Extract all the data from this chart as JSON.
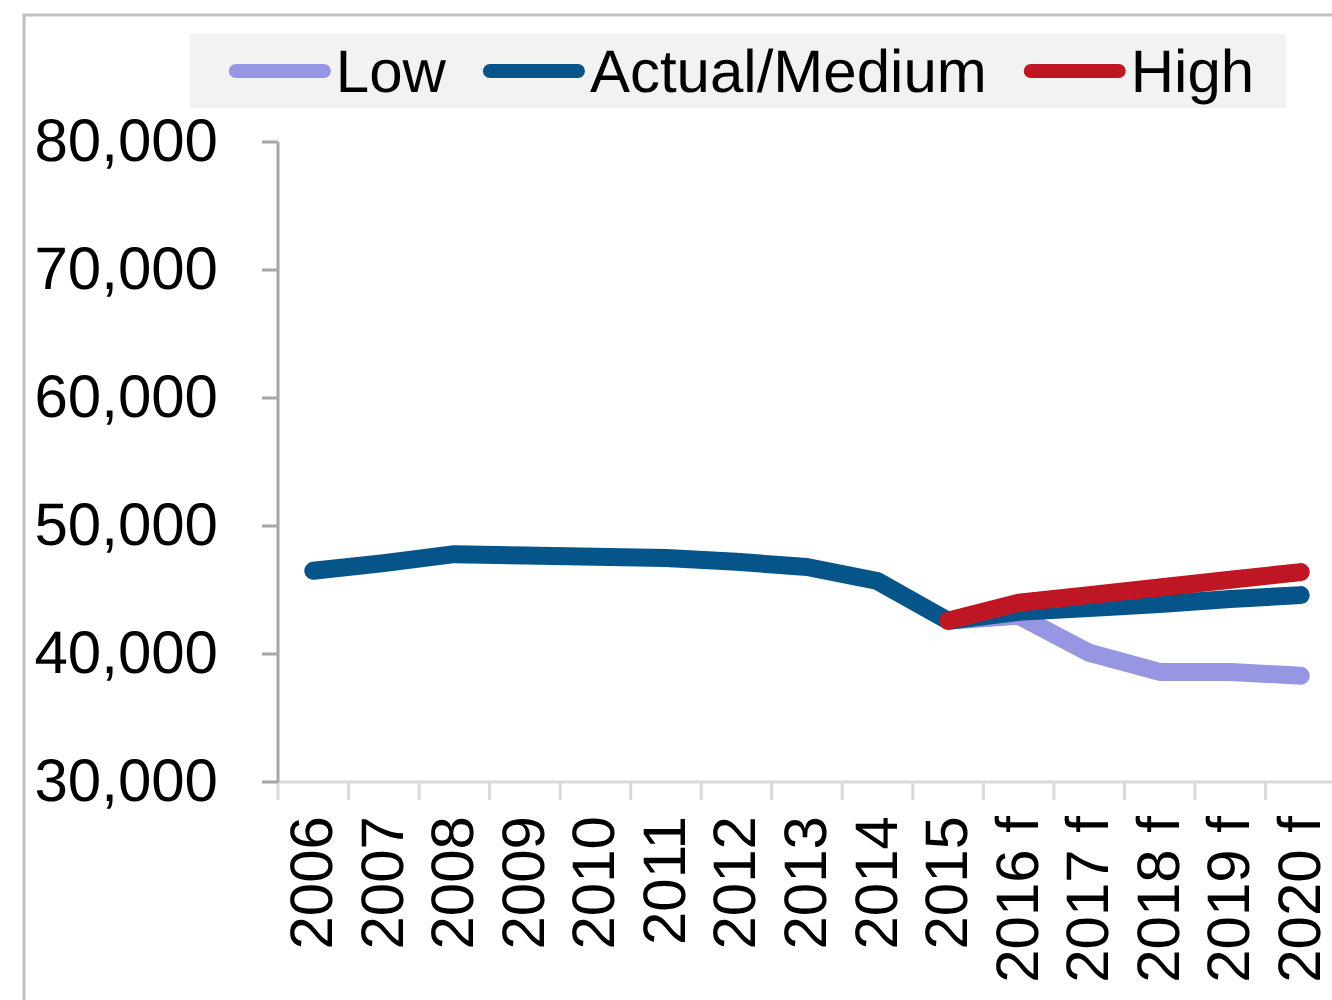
{
  "chart_data": {
    "type": "line",
    "categories": [
      "2006",
      "2007",
      "2008",
      "2009",
      "2010",
      "2011",
      "2012",
      "2013",
      "2014",
      "2015",
      "2016 f",
      "2017 f",
      "2018 f",
      "2019 f",
      "2020 f"
    ],
    "series": [
      {
        "name": "Low",
        "color": "#9696e2",
        "values": [
          null,
          null,
          null,
          null,
          null,
          null,
          null,
          null,
          null,
          42600,
          43000,
          40100,
          38600,
          38600,
          38300
        ]
      },
      {
        "name": "Actual/Medium",
        "color": "#05548a",
        "values": [
          46500,
          47100,
          47800,
          47700,
          47600,
          47500,
          47200,
          46800,
          45700,
          42600,
          43300,
          43600,
          43900,
          44300,
          44600
        ]
      },
      {
        "name": "High",
        "color": "#be1622",
        "values": [
          null,
          null,
          null,
          null,
          null,
          null,
          null,
          null,
          null,
          42600,
          44000,
          44600,
          45200,
          45800,
          46400
        ]
      }
    ],
    "ylim": [
      30000,
      80000
    ],
    "yticks": [
      {
        "value": 30000,
        "label": "30,000"
      },
      {
        "value": 40000,
        "label": "40,000"
      },
      {
        "value": 50000,
        "label": "50,000"
      },
      {
        "value": 60000,
        "label": "60,000"
      },
      {
        "value": 70000,
        "label": "70,000"
      },
      {
        "value": 80000,
        "label": "80,000"
      }
    ],
    "legend": "top",
    "line_style": "solid"
  }
}
